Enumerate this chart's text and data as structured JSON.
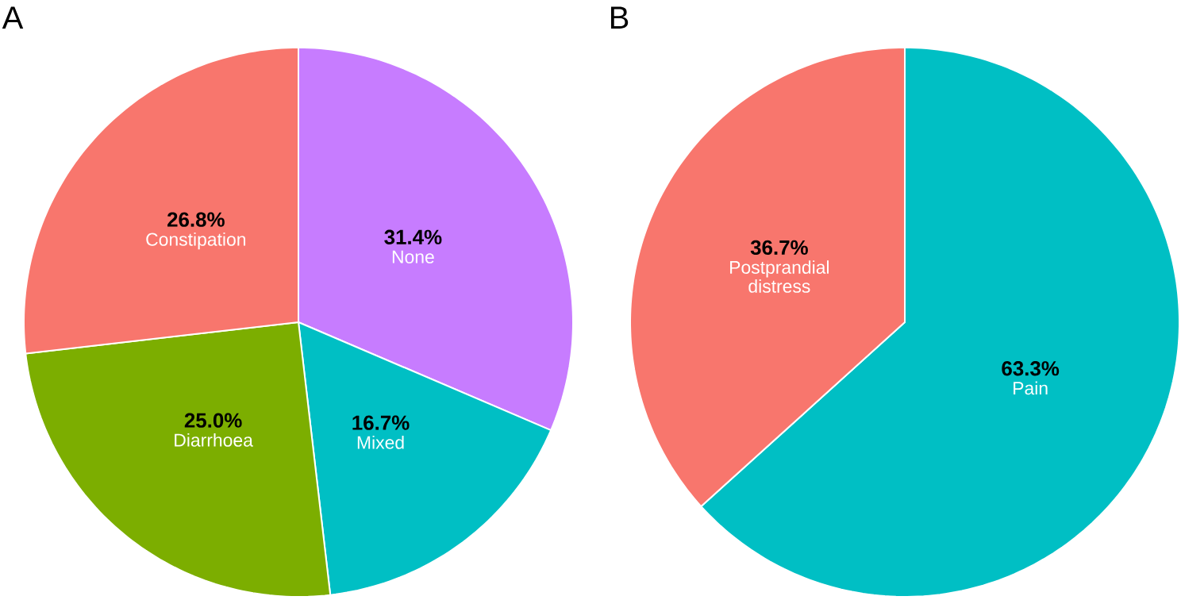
{
  "chart_data": [
    {
      "type": "pie",
      "title": "A",
      "categories": [
        "None",
        "Mixed",
        "Diarrhoea",
        "Constipation"
      ],
      "values": [
        31.4,
        16.7,
        25.0,
        26.8
      ],
      "colors": [
        "#c77cff",
        "#00bfc4",
        "#7cae00",
        "#f8766d"
      ],
      "value_labels": [
        "31.4%",
        "16.7%",
        "25.0%",
        "26.8%"
      ]
    },
    {
      "type": "pie",
      "title": "B",
      "categories": [
        "Pain",
        "Postprandial distress"
      ],
      "values": [
        63.3,
        36.7
      ],
      "colors": [
        "#00bfc4",
        "#f8766d"
      ],
      "value_labels": [
        "63.3%",
        "36.7%"
      ]
    }
  ]
}
